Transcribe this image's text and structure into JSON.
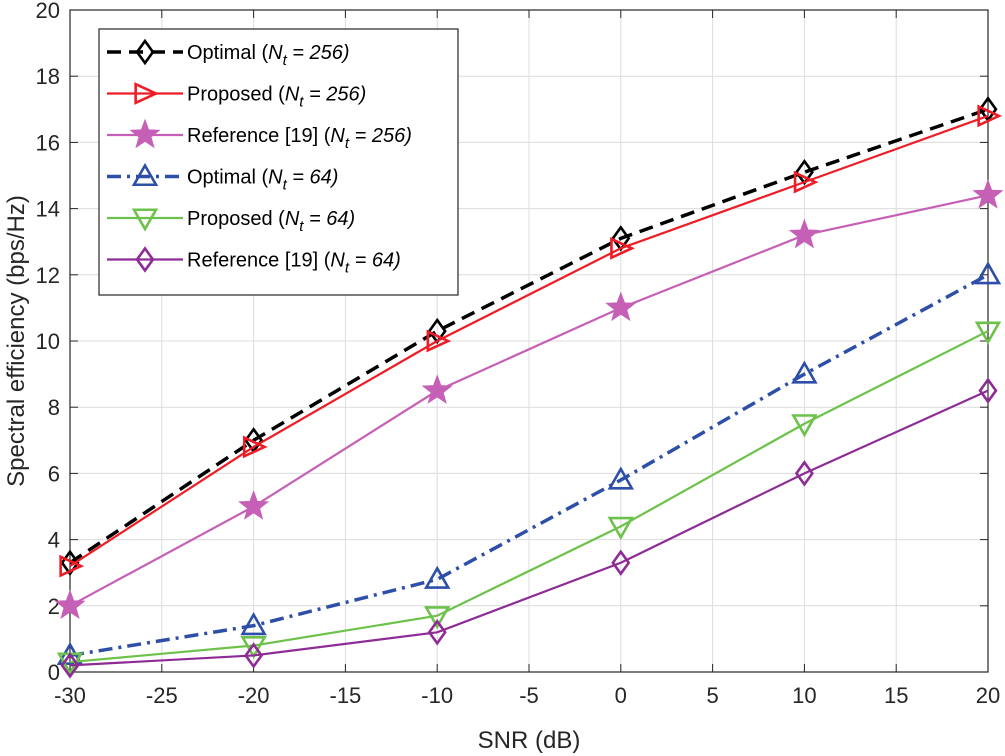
{
  "chart_data": {
    "type": "line",
    "title": "",
    "xlabel": "SNR (dB)",
    "ylabel": "Spectral efficiency (bps/Hz)",
    "xlim": [
      -30,
      20
    ],
    "ylim": [
      0,
      20
    ],
    "x": [
      -30,
      -20,
      -10,
      0,
      10,
      20
    ],
    "xticks": [
      -30,
      -25,
      -20,
      -15,
      -10,
      -5,
      0,
      5,
      10,
      15,
      20
    ],
    "yticks": [
      0,
      2,
      4,
      6,
      8,
      10,
      12,
      14,
      16,
      18,
      20
    ],
    "grid": true,
    "legend_position": "top-left",
    "series": [
      {
        "name": "Optimal (N_t = 256)",
        "label_main": "Optimal (",
        "label_italic": "N",
        "label_sub": "t",
        "label_rest": " = 256)",
        "color": "#000000",
        "dash": "dashed",
        "marker": "diamond",
        "values": [
          3.3,
          7.0,
          10.3,
          13.1,
          15.1,
          17.0
        ]
      },
      {
        "name": "Proposed (N_t = 256)",
        "label_main": "Proposed (",
        "label_italic": "N",
        "label_sub": "t",
        "label_rest": " = 256)",
        "color": "#ee1c25",
        "dash": "solid",
        "marker": "triangle-right",
        "values": [
          3.2,
          6.8,
          10.0,
          12.8,
          14.8,
          16.8
        ]
      },
      {
        "name": "Reference [19] (N_t = 256)",
        "label_main": "Reference [19] (",
        "label_italic": "N",
        "label_sub": "t",
        "label_rest": " = 256)",
        "color": "#c660b6",
        "dash": "solid",
        "marker": "star",
        "values": [
          2.0,
          5.0,
          8.5,
          11.0,
          13.2,
          14.4
        ]
      },
      {
        "name": "Optimal (N_t = 64)",
        "label_main": "Optimal (",
        "label_italic": "N",
        "label_sub": "t",
        "label_rest": " = 64)",
        "color": "#2e4fa8",
        "dash": "dashdot",
        "marker": "triangle-up",
        "values": [
          0.5,
          1.4,
          2.8,
          5.8,
          9.0,
          12.0
        ]
      },
      {
        "name": "Proposed (N_t = 64)",
        "label_main": "Proposed (",
        "label_italic": "N",
        "label_sub": "t",
        "label_rest": " = 64)",
        "color": "#6cc24a",
        "dash": "solid",
        "marker": "triangle-down",
        "values": [
          0.3,
          0.8,
          1.7,
          4.4,
          7.5,
          10.3
        ]
      },
      {
        "name": "Reference [19] (N_t = 64)",
        "label_main": "Reference [19] (",
        "label_italic": "N",
        "label_sub": "t",
        "label_rest": " = 64)",
        "color": "#8e2c96",
        "dash": "solid",
        "marker": "diamond",
        "values": [
          0.2,
          0.5,
          1.2,
          3.3,
          6.0,
          8.5
        ]
      }
    ]
  }
}
